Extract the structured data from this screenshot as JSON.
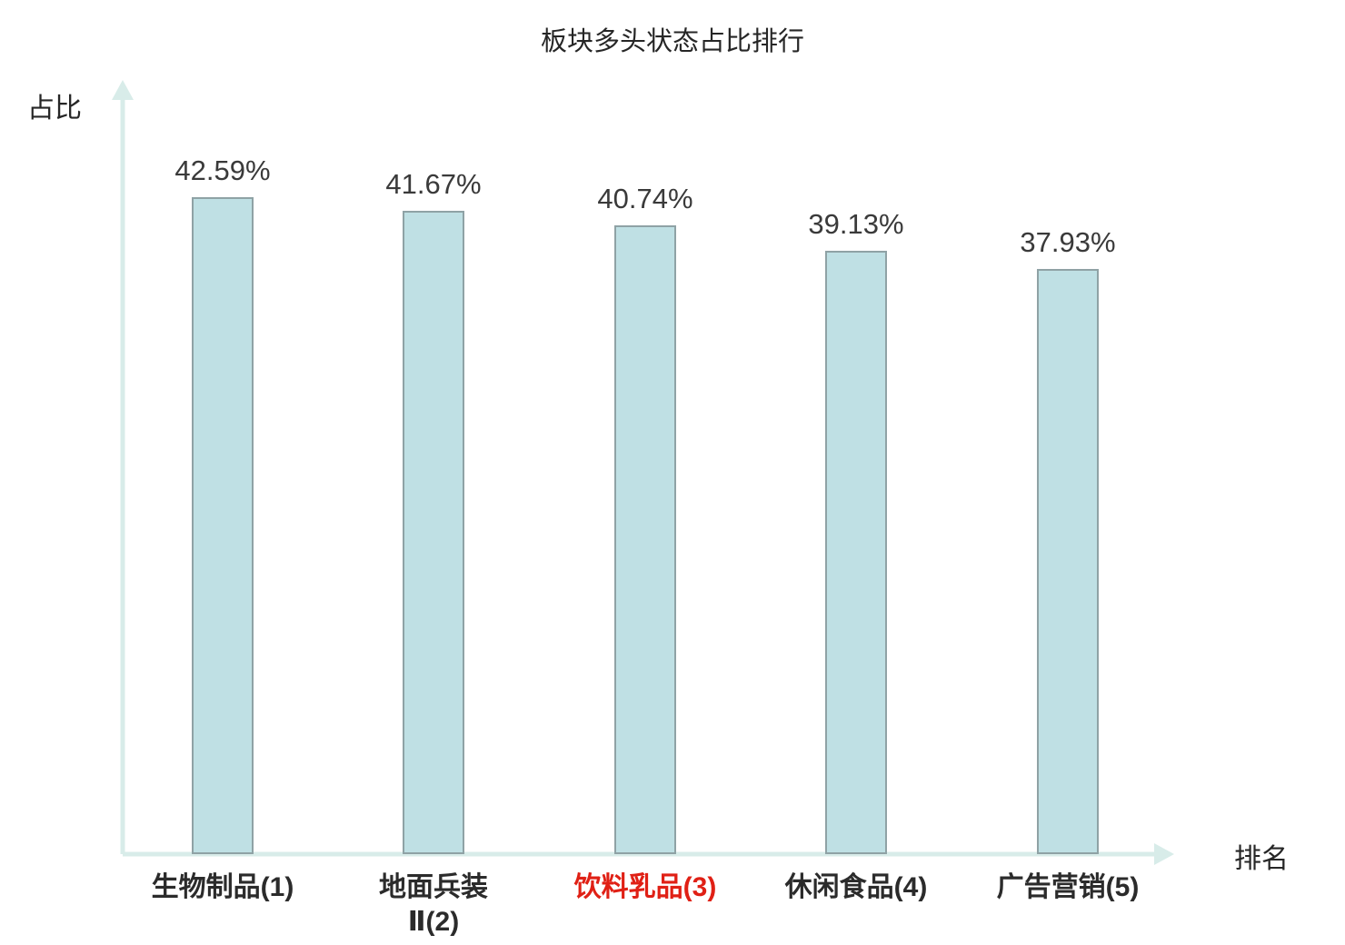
{
  "title": "板块多头状态占比排行",
  "y_axis_label": "占比",
  "x_axis_label": "排名",
  "colors": {
    "bar_fill": "#bfe0e4",
    "bar_border": "#8fa2a5",
    "axis": "#d8ece9",
    "value_text": "#3a3a3a",
    "category_text": "#2b2b2b",
    "highlight": "#e02015"
  },
  "chart_data": {
    "type": "bar",
    "title": "板块多头状态占比排行",
    "xlabel": "排名",
    "ylabel": "占比",
    "categories": [
      "生物制品(1)",
      "地面兵装Ⅱ(2)",
      "饮料乳品(3)",
      "休闲食品(4)",
      "广告营销(5)"
    ],
    "category_display": [
      "生物制品(1)",
      "地面兵装\nⅡ(2)",
      "饮料乳品(3)",
      "休闲食品(4)",
      "广告营销(5)"
    ],
    "values": [
      42.59,
      41.67,
      40.74,
      39.13,
      37.93
    ],
    "value_labels": [
      "42.59%",
      "41.67%",
      "40.74%",
      "39.13%",
      "37.93%"
    ],
    "ylim": [
      0,
      50
    ],
    "highlighted_index": 2,
    "highlighted_category": "饮料乳品(3)",
    "grid": false,
    "legend_position": "none"
  }
}
